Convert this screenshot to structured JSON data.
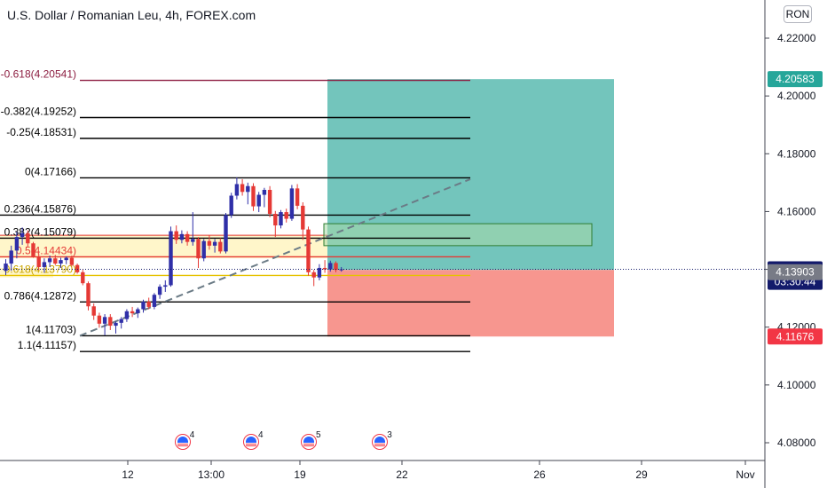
{
  "header": {
    "title": "U.S. Dollar / Romanian Leu, 4h, FOREX.com",
    "currency_button": "RON"
  },
  "colors": {
    "bull": "#2f2fa8",
    "bear": "#e53935",
    "profit_zone": "#73c5bc",
    "loss_zone": "#f7968f",
    "top_fib": "#8c1d40",
    "fib_line": "#000000",
    "axis_text": "#131722"
  },
  "chart_data": {
    "type": "candlestick",
    "symbol": "USDRON",
    "interval": "4h",
    "ylim": [
      4.074,
      4.228
    ],
    "y_ticks": [
      "4.22000",
      "4.20000",
      "4.18000",
      "4.16000",
      "4.14000",
      "4.12000",
      "4.10000",
      "4.08000"
    ],
    "x_ticks": [
      "12",
      "13:00",
      "19",
      "22",
      "26",
      "29",
      "Nov"
    ],
    "fib_levels": [
      {
        "label": "-0.618(4.20541)",
        "value": 4.20541,
        "color": "#8c1d40"
      },
      {
        "label": "-0.382(4.19252)",
        "value": 4.19252,
        "color": "#000000"
      },
      {
        "label": "-0.25(4.18531)",
        "value": 4.18531,
        "color": "#000000"
      },
      {
        "label": "0(4.17166)",
        "value": 4.17166,
        "color": "#000000"
      },
      {
        "label": "0.236(4.15876)",
        "value": 4.15876,
        "color": "#000000"
      },
      {
        "label": "0.382(4.15079)",
        "value": 4.15079,
        "color": "#000000"
      },
      {
        "label": "0.5(4.14434)",
        "value": 4.14434,
        "color": "#e53935"
      },
      {
        "label": "0.618(4.13790)",
        "value": 4.1379,
        "color": "#e6c200"
      },
      {
        "label": "0.786(4.12872)",
        "value": 4.12872,
        "color": "#000000"
      },
      {
        "label": "1(4.11703)",
        "value": 4.11703,
        "color": "#000000"
      },
      {
        "label": "1.1(4.11157)",
        "value": 4.11157,
        "color": "#000000"
      }
    ],
    "position": {
      "entry": 4.1398,
      "target": 4.20583,
      "stop": 4.11676
    },
    "price_labels": [
      {
        "text": "4.20583",
        "value": 4.20583,
        "bg": "#26a69a",
        "fg": "#ffffff"
      },
      {
        "text": "4.14003",
        "value": 4.14003,
        "bg": "#131a6b",
        "fg": "#ffffff"
      },
      {
        "text": "03:30:44",
        "value": 4.1357,
        "bg": "#131a6b",
        "fg": "#ffffff"
      },
      {
        "text": "4.13903",
        "value": 4.13903,
        "bg": "#787b86",
        "fg": "#ffffff"
      },
      {
        "text": "4.11676",
        "value": 4.11676,
        "bg": "#f23645",
        "fg": "#ffffff"
      }
    ],
    "candles": [
      [
        4.1395,
        4.1435,
        4.138,
        4.142
      ],
      [
        4.142,
        4.1482,
        4.1395,
        4.1465
      ],
      [
        4.1465,
        4.153,
        4.1438,
        4.1512
      ],
      [
        4.1512,
        4.1545,
        4.1485,
        4.1525
      ],
      [
        4.1525,
        4.1535,
        4.1478,
        4.149
      ],
      [
        4.149,
        4.1495,
        4.144,
        4.1445
      ],
      [
        4.1445,
        4.1455,
        4.1398,
        4.1408
      ],
      [
        4.1408,
        4.1438,
        4.1388,
        4.1425
      ],
      [
        4.1425,
        4.1448,
        4.1408,
        4.1438
      ],
      [
        4.1438,
        4.145,
        4.1415,
        4.142
      ],
      [
        4.142,
        4.144,
        4.1405,
        4.1432
      ],
      [
        4.1432,
        4.1445,
        4.1418,
        4.144
      ],
      [
        4.144,
        4.1448,
        4.141,
        4.1415
      ],
      [
        4.1415,
        4.142,
        4.1385,
        4.139
      ],
      [
        4.139,
        4.1398,
        4.1345,
        4.1352
      ],
      [
        4.1352,
        4.1358,
        4.1258,
        4.1272
      ],
      [
        4.1272,
        4.1282,
        4.1225,
        4.124
      ],
      [
        4.124,
        4.125,
        4.1198,
        4.1212
      ],
      [
        4.1212,
        4.1245,
        4.1172,
        4.1235
      ],
      [
        4.1235,
        4.1245,
        4.119,
        4.1205
      ],
      [
        4.1205,
        4.122,
        4.1178,
        4.1215
      ],
      [
        4.1215,
        4.1235,
        4.1195,
        4.1228
      ],
      [
        4.1228,
        4.1262,
        4.1218,
        4.1255
      ],
      [
        4.1255,
        4.127,
        4.1235,
        4.1248
      ],
      [
        4.1248,
        4.1268,
        4.1232,
        4.1262
      ],
      [
        4.1262,
        4.1295,
        4.125,
        4.1288
      ],
      [
        4.1288,
        4.1302,
        4.1262,
        4.127
      ],
      [
        4.127,
        4.1318,
        4.1262,
        4.1312
      ],
      [
        4.1312,
        4.1348,
        4.1298,
        4.134
      ],
      [
        4.134,
        4.1362,
        4.1322,
        4.1345
      ],
      [
        4.1345,
        4.1548,
        4.134,
        4.1532
      ],
      [
        4.1532,
        4.1552,
        4.1488,
        4.1502
      ],
      [
        4.1502,
        4.1535,
        4.149,
        4.1522
      ],
      [
        4.1522,
        4.1532,
        4.1482,
        4.1495
      ],
      [
        4.1495,
        4.1598,
        4.1482,
        4.1505
      ],
      [
        4.1505,
        4.1512,
        4.1405,
        4.1438
      ],
      [
        4.1438,
        4.1505,
        4.1428,
        4.1498
      ],
      [
        4.1498,
        4.1518,
        4.1468,
        4.1482
      ],
      [
        4.1482,
        4.1505,
        4.1458,
        4.1495
      ],
      [
        4.1495,
        4.1508,
        4.1455,
        4.1462
      ],
      [
        4.1462,
        4.1595,
        4.1455,
        4.1588
      ],
      [
        4.1588,
        4.1665,
        4.1578,
        4.1655
      ],
      [
        4.1655,
        4.1718,
        4.1642,
        4.1695
      ],
      [
        4.1695,
        4.1712,
        4.1655,
        4.1668
      ],
      [
        4.1668,
        4.17,
        4.1625,
        4.1688
      ],
      [
        4.1688,
        4.1698,
        4.1602,
        4.1618
      ],
      [
        4.1618,
        4.1668,
        4.1598,
        4.1658
      ],
      [
        4.1658,
        4.1682,
        4.1615,
        4.1675
      ],
      [
        4.1675,
        4.1688,
        4.158,
        4.1592
      ],
      [
        4.1592,
        4.1602,
        4.1512,
        4.1552
      ],
      [
        4.1552,
        4.1605,
        4.1542,
        4.1598
      ],
      [
        4.1598,
        4.161,
        4.1562,
        4.1575
      ],
      [
        4.1575,
        4.1692,
        4.1568,
        4.168
      ],
      [
        4.168,
        4.1695,
        4.1608,
        4.162
      ],
      [
        4.162,
        4.1632,
        4.1502,
        4.1538
      ],
      [
        4.1538,
        4.1548,
        4.1378,
        4.139
      ],
      [
        4.139,
        4.1398,
        4.1342,
        4.1372
      ],
      [
        4.1372,
        4.1418,
        4.1362,
        4.1405
      ],
      [
        4.1405,
        4.1432,
        4.1388,
        4.14
      ],
      [
        4.14,
        4.143,
        4.1392,
        4.1422
      ],
      [
        4.1422,
        4.1428,
        4.139,
        4.1398
      ],
      [
        4.1398,
        4.1408,
        4.1392,
        4.14
      ]
    ],
    "events": [
      {
        "label": "4",
        "x": 14
      },
      {
        "label": "4",
        "x": 16.5
      },
      {
        "label": "5",
        "x": 18.6
      },
      {
        "label": "3",
        "x": 21.2
      }
    ]
  }
}
